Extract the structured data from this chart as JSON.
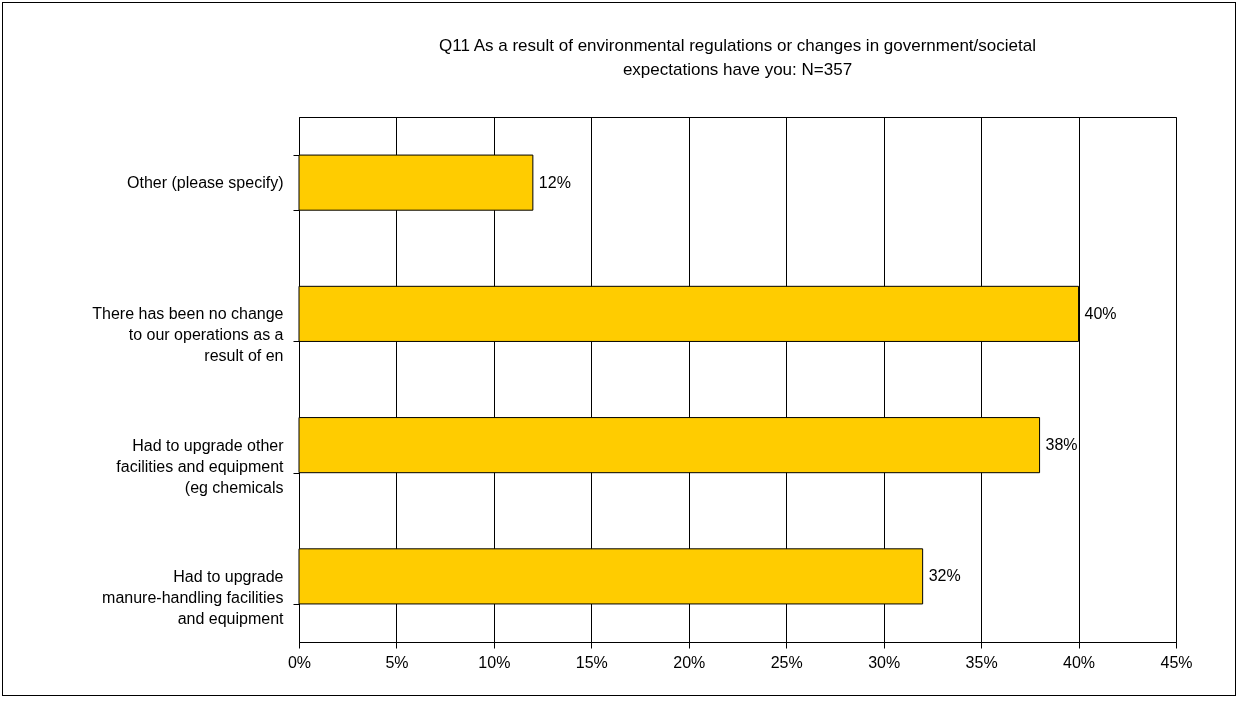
{
  "chart_data": {
    "type": "bar",
    "orientation": "horizontal",
    "title": "Q11 As a result of environmental regulations or changes in government/societal expectations have you:  N=357",
    "categories": [
      "Other (please specify)",
      "There has been no change to our operations as a result of en",
      "Had to upgrade other facilities and equipment (eg chemicals",
      "Had to upgrade manure-handling facilities and equipment"
    ],
    "values": [
      12,
      40,
      38,
      32
    ],
    "value_labels": [
      "12%",
      "40%",
      "38%",
      "32%"
    ],
    "color": "#ffcc00",
    "xlim": [
      0,
      45
    ],
    "xticks": [
      {
        "value": 0,
        "label": "0%"
      },
      {
        "value": 5,
        "label": "5%"
      },
      {
        "value": 10,
        "label": "10%"
      },
      {
        "value": 15,
        "label": "15%"
      },
      {
        "value": 20,
        "label": "20%"
      },
      {
        "value": 25,
        "label": "25%"
      },
      {
        "value": 30,
        "label": "30%"
      },
      {
        "value": 35,
        "label": "35%"
      },
      {
        "value": 40,
        "label": "40%"
      },
      {
        "value": 45,
        "label": "45%"
      }
    ],
    "grid": "x"
  }
}
